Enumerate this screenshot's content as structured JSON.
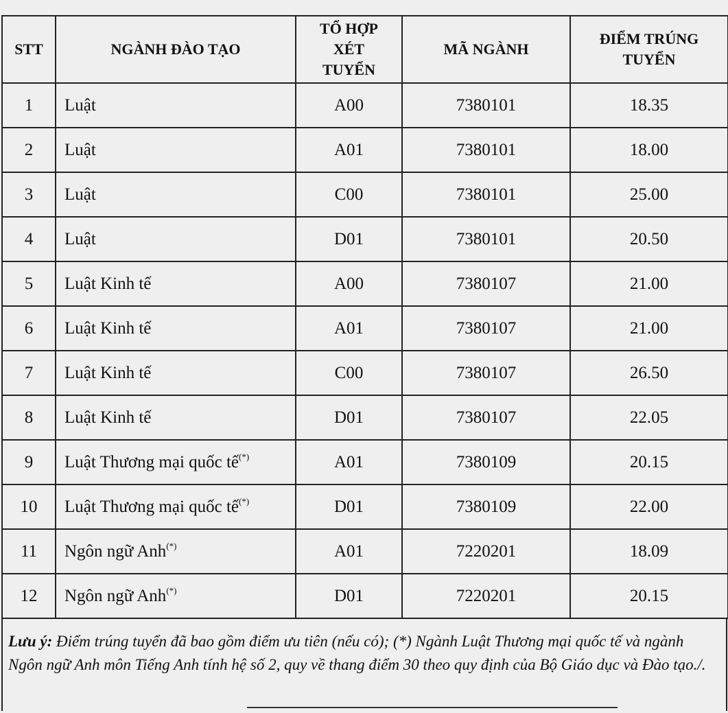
{
  "table": {
    "headers": [
      "STT",
      "NGÀNH ĐÀO TẠO",
      "TỔ HỢP XÉT TUYỂN",
      "MÃ NGÀNH",
      "ĐIỂM TRÚNG TUYỂN"
    ],
    "rows": [
      {
        "stt": "1",
        "nganh": "Luật",
        "mark": "",
        "to_hop": "A00",
        "ma": "7380101",
        "diem": "18.35"
      },
      {
        "stt": "2",
        "nganh": "Luật",
        "mark": "",
        "to_hop": "A01",
        "ma": "7380101",
        "diem": "18.00"
      },
      {
        "stt": "3",
        "nganh": "Luật",
        "mark": "",
        "to_hop": "C00",
        "ma": "7380101",
        "diem": "25.00"
      },
      {
        "stt": "4",
        "nganh": "Luật",
        "mark": "",
        "to_hop": "D01",
        "ma": "7380101",
        "diem": "20.50"
      },
      {
        "stt": "5",
        "nganh": "Luật Kinh tế",
        "mark": "",
        "to_hop": "A00",
        "ma": "7380107",
        "diem": "21.00"
      },
      {
        "stt": "6",
        "nganh": "Luật Kinh tế",
        "mark": "",
        "to_hop": "A01",
        "ma": "7380107",
        "diem": "21.00"
      },
      {
        "stt": "7",
        "nganh": "Luật Kinh tế",
        "mark": "",
        "to_hop": "C00",
        "ma": "7380107",
        "diem": "26.50"
      },
      {
        "stt": "8",
        "nganh": "Luật Kinh tế",
        "mark": "",
        "to_hop": "D01",
        "ma": "7380107",
        "diem": "22.05"
      },
      {
        "stt": "9",
        "nganh": "Luật Thương mại quốc tế",
        "mark": "(*)",
        "to_hop": "A01",
        "ma": "7380109",
        "diem": "20.15"
      },
      {
        "stt": "10",
        "nganh": "Luật Thương mại quốc tế",
        "mark": "(*)",
        "to_hop": "D01",
        "ma": "7380109",
        "diem": "22.00"
      },
      {
        "stt": "11",
        "nganh": "Ngôn ngữ Anh",
        "mark": "(*)",
        "to_hop": "A01",
        "ma": "7220201",
        "diem": "18.09"
      },
      {
        "stt": "12",
        "nganh": "Ngôn ngữ Anh",
        "mark": "(*)",
        "to_hop": "D01",
        "ma": "7220201",
        "diem": "20.15"
      }
    ]
  },
  "note": {
    "label": "Lưu ý:",
    "text": " Điểm trúng tuyển đã bao gồm điểm ưu tiên (nếu có); (*) Ngành Luật Thương mại quốc tế và ngành Ngôn ngữ Anh môn Tiếng Anh tính hệ số 2, quy về thang điểm 30 theo quy định của Bộ Giáo dục và Đào tạo./."
  }
}
